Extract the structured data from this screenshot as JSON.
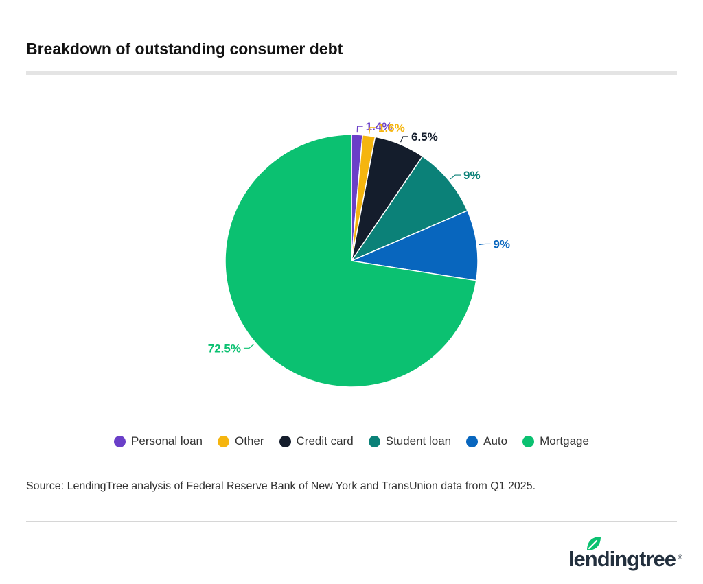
{
  "header": {
    "title": "Breakdown of outstanding consumer debt"
  },
  "chart_data": {
    "type": "pie",
    "title": "Breakdown of outstanding consumer debt",
    "slices": [
      {
        "name": "Personal loan",
        "value": 1.4,
        "label": "1.4%",
        "color": "#6a3fc8"
      },
      {
        "name": "Other",
        "value": 1.6,
        "label": "1.6%",
        "color": "#f5b50f"
      },
      {
        "name": "Credit card",
        "value": 6.5,
        "label": "6.5%",
        "color": "#141d2c"
      },
      {
        "name": "Student loan",
        "value": 9,
        "label": "9%",
        "color": "#0b8178"
      },
      {
        "name": "Auto",
        "value": 9,
        "label": "9%",
        "color": "#0866be"
      },
      {
        "name": "Mortgage",
        "value": 72.5,
        "label": "72.5%",
        "color": "#0bc171"
      }
    ],
    "legend_position": "bottom",
    "start_angle": "top, clockwise"
  },
  "legend": {
    "items": [
      {
        "label": "Personal loan",
        "color": "#6a3fc8"
      },
      {
        "label": "Other",
        "color": "#f5b50f"
      },
      {
        "label": "Credit card",
        "color": "#141d2c"
      },
      {
        "label": "Student loan",
        "color": "#0b8178"
      },
      {
        "label": "Auto",
        "color": "#0866be"
      },
      {
        "label": "Mortgage",
        "color": "#0bc171"
      }
    ]
  },
  "footer": {
    "source": "Source: LendingTree analysis of Federal Reserve Bank of New York and TransUnion data from Q1 2025.",
    "logo": "lendingtree",
    "logo_mark": "®",
    "logo_icon": "leaf-icon",
    "logo_color": "#0bc171"
  }
}
